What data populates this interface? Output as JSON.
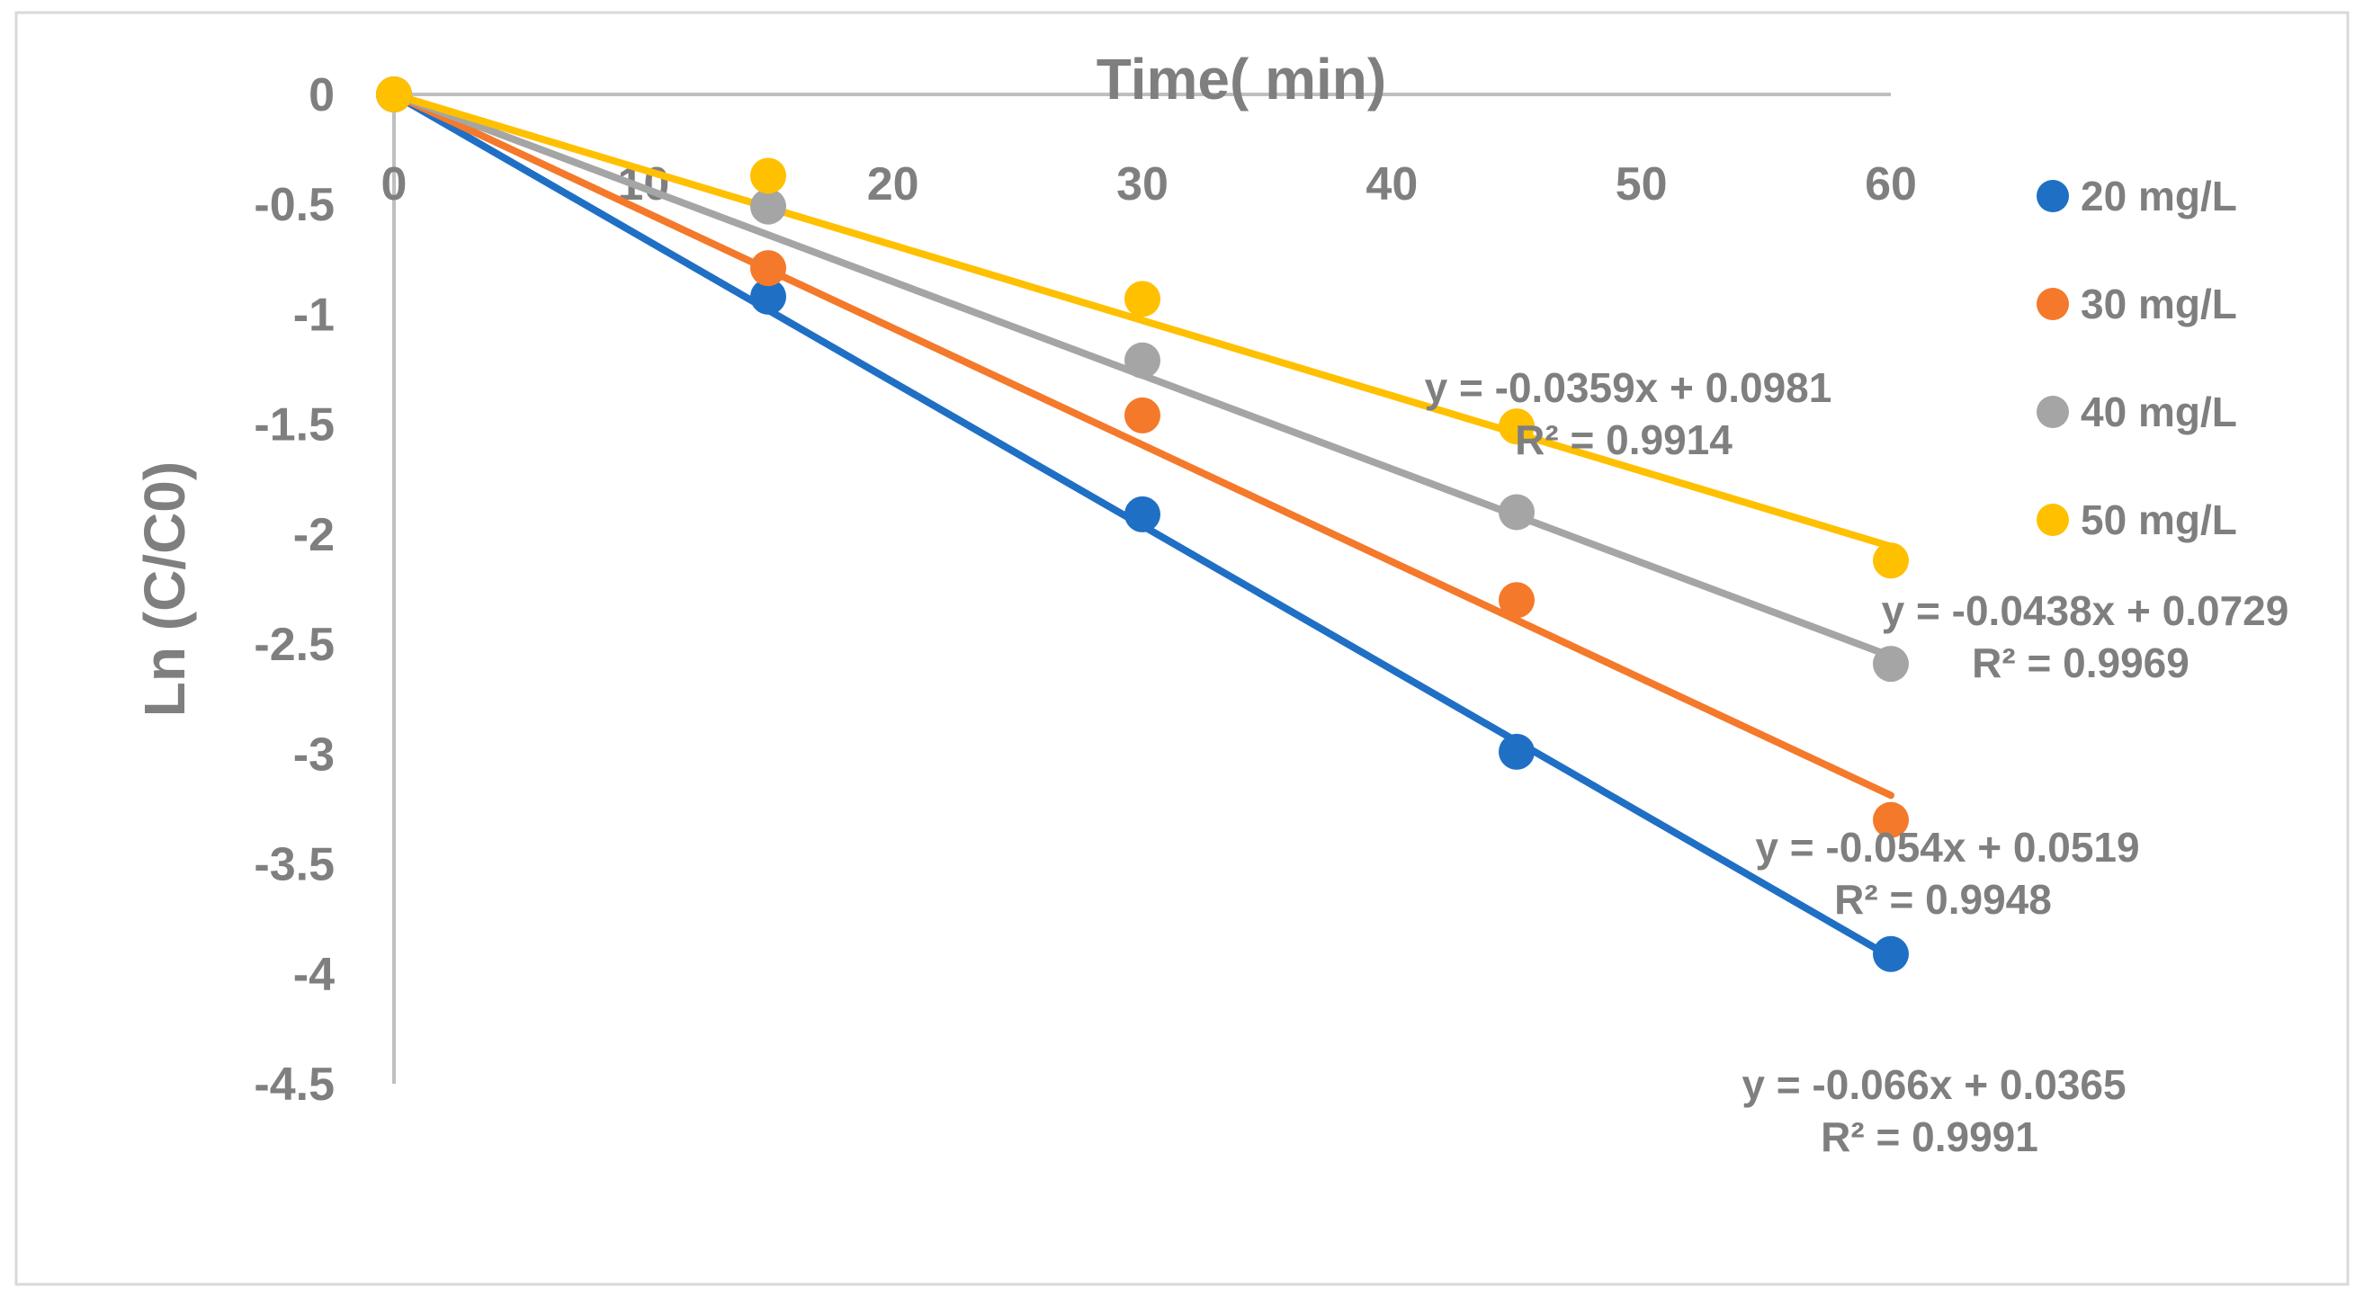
{
  "chart_data": {
    "type": "scatter",
    "title": "",
    "xlabel": "Time( min)",
    "ylabel": "Ln (C/C0)",
    "xlim": [
      0,
      60
    ],
    "ylim": [
      -4.5,
      0
    ],
    "x_ticks": [
      "0",
      "10",
      "20",
      "30",
      "40",
      "50",
      "60"
    ],
    "y_ticks": [
      "0",
      "-0.5",
      "-1",
      "-1.5",
      "-2",
      "-2.5",
      "-3",
      "-3.5",
      "-4",
      "-4.5"
    ],
    "grid": false,
    "legend_position": "right",
    "series": [
      {
        "name": "20 mg/L",
        "color": "#1f6fc5",
        "x": [
          0,
          15,
          30,
          45,
          60
        ],
        "y": [
          0,
          -0.92,
          -1.91,
          -2.99,
          -3.91
        ],
        "trendline": {
          "slope": -0.066,
          "intercept": 0.0365
        },
        "equation": "y = -0.066x + 0.0365",
        "r_squared": "R² = 0.9991"
      },
      {
        "name": "30 mg/L",
        "color": "#f4792b",
        "x": [
          0,
          15,
          30,
          45,
          60
        ],
        "y": [
          0,
          -0.79,
          -1.46,
          -2.3,
          -3.3
        ],
        "trendline": {
          "slope": -0.054,
          "intercept": 0.0519
        },
        "equation": "y = -0.054x + 0.0519",
        "r_squared": "R² = 0.9948"
      },
      {
        "name": "40 mg/L",
        "color": "#a5a5a5",
        "x": [
          0,
          15,
          30,
          45,
          60
        ],
        "y": [
          0,
          -0.51,
          -1.21,
          -1.9,
          -2.59
        ],
        "trendline": {
          "slope": -0.0438,
          "intercept": 0.0729
        },
        "equation": "y = -0.0438x + 0.0729",
        "r_squared": "R² = 0.9969"
      },
      {
        "name": "50 mg/L",
        "color": "#ffc000",
        "x": [
          0,
          15,
          30,
          45,
          60
        ],
        "y": [
          0,
          -0.37,
          -0.93,
          -1.51,
          -2.12
        ],
        "trendline": {
          "slope": -0.0359,
          "intercept": 0.0981
        },
        "equation": "y = -0.0359x + 0.0981",
        "r_squared": "R² = 0.9914"
      }
    ]
  }
}
